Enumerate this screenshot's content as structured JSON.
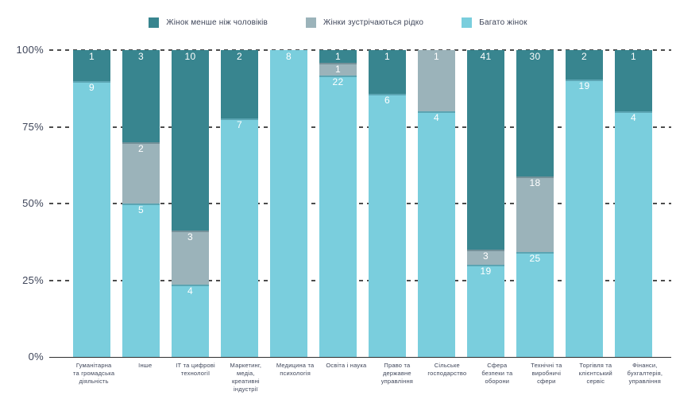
{
  "page": {
    "background": "#ffffff",
    "text_color": "#3e4559"
  },
  "legend": {
    "items": [
      {
        "label": "Жінок менше ніж чоловіків",
        "color": "#38858F"
      },
      {
        "label": "Жінки зустрічаються рідко",
        "color": "#9BB3BA"
      },
      {
        "label": "Багато жінок",
        "color": "#7ACEDD"
      }
    ]
  },
  "chart_data": {
    "type": "bar",
    "stacked": true,
    "percent_stacked": true,
    "title": "",
    "xlabel": "",
    "ylabel": "",
    "ylim": [
      0,
      100
    ],
    "yticks": [
      "100%",
      "75%",
      "50%",
      "25%",
      "0%"
    ],
    "grid": "dashed-horizontal",
    "legend_position": "top-center",
    "gridline_color": "#4d4d4d",
    "axis_line_color": "#2e2e2e",
    "value_label_color": "#ffffff",
    "categories": [
      "Гуманітарна\nта громадська\nдіяльність",
      "Інше",
      "ІТ та цифрові\nтехнології",
      "Маркетинг,\nмедіа,\nкреативні\nіндустрії",
      "Медицина та\nпсихологія",
      "Освіта і наука",
      "Право та\nдержавне\nуправління",
      "Сільське\nгосподарство",
      "Сфера\nбезпеки та\nоборони",
      "Технічні та\nвиробничі\nсфери",
      "Торгівля та\nклієнтський\nсервіс",
      "Фінанси,\nбухгалтерія,\nуправління"
    ],
    "series": [
      {
        "name": "Жінок менше ніж чоловіків",
        "color": "#38858F",
        "values": [
          1,
          3,
          10,
          2,
          0,
          1,
          1,
          0,
          41,
          30,
          2,
          1
        ]
      },
      {
        "name": "Жінки зустрічаються рідко",
        "color": "#9BB3BA",
        "values": [
          0,
          2,
          3,
          0,
          0,
          1,
          0,
          1,
          3,
          18,
          0,
          0
        ]
      },
      {
        "name": "Багато жінок",
        "color": "#7ACEDD",
        "values": [
          9,
          5,
          4,
          7,
          8,
          22,
          6,
          4,
          19,
          25,
          19,
          4
        ]
      }
    ]
  }
}
